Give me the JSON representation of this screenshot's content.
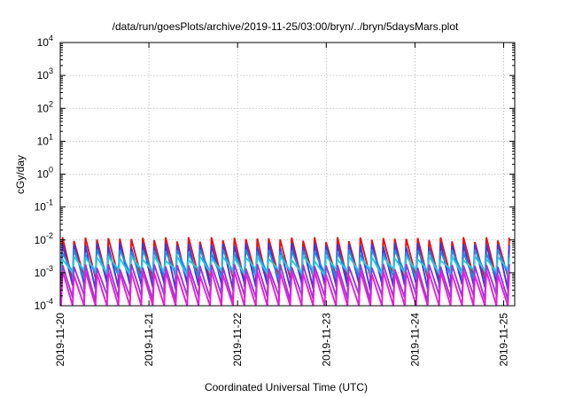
{
  "chart_data": {
    "type": "line",
    "title": "/data/run/goesPlots/archive/2019-11-25/03:00/bryn/../bryn/5daysMars.plot",
    "xlabel": "Coordinated Universal Time (UTC)",
    "ylabel": "cGy/day",
    "yscale": "log",
    "ylim": [
      0.0001,
      10000
    ],
    "xlim": [
      "2019-11-20 00:00",
      "2019-11-25 03:00"
    ],
    "grid": true,
    "x_tick_labels": [
      "2019-11-20",
      "2019-11-21",
      "2019-11-22",
      "2019-11-23",
      "2019-11-24",
      "2019-11-25"
    ],
    "y_ticks": [
      {
        "base": "10",
        "exp": "-4"
      },
      {
        "base": "10",
        "exp": "-3"
      },
      {
        "base": "10",
        "exp": "-2"
      },
      {
        "base": "10",
        "exp": "-1"
      },
      {
        "base": "10",
        "exp": "0"
      },
      {
        "base": "10",
        "exp": "1"
      },
      {
        "base": "10",
        "exp": "2"
      },
      {
        "base": "10",
        "exp": "3"
      },
      {
        "base": "10",
        "exp": "4"
      }
    ],
    "sawtooth_period_hours": 3.1,
    "series": [
      {
        "color": "#e8101a",
        "peak": 0.0105,
        "trough": 0.00065
      },
      {
        "color": "#3a3ae6",
        "peak": 0.007,
        "trough": 0.0004
      },
      {
        "color": "#1e8ce6",
        "peak": 0.0045,
        "trough": 0.00085
      },
      {
        "color": "#2bc8dc",
        "peak": 0.0028,
        "trough": 0.0011
      },
      {
        "color": "#9a38d8",
        "peak": 0.0016,
        "trough": 0.00018
      },
      {
        "color": "#e81ed6",
        "peak": 0.001,
        "trough": 8e-05
      }
    ]
  }
}
